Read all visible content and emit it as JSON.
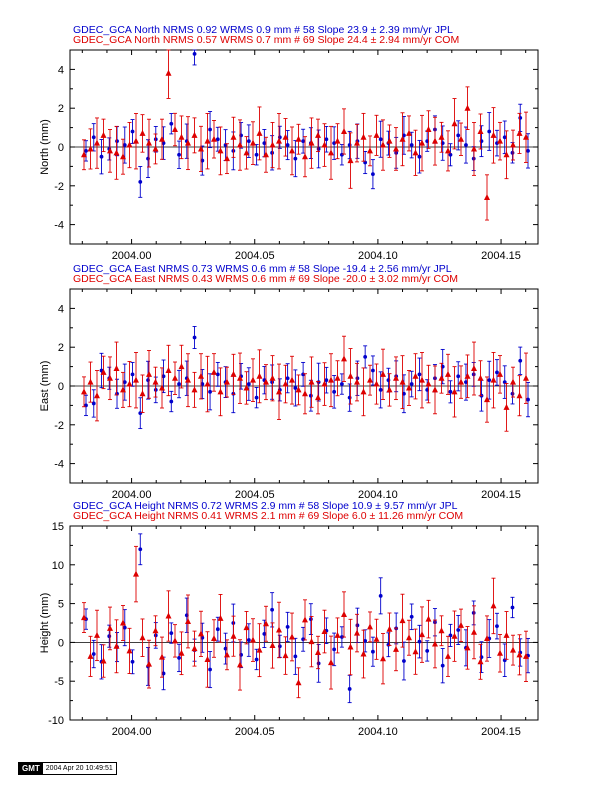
{
  "chart_data": [
    {
      "type": "scatter",
      "ylabel": "North (mm)",
      "ylim": [
        -5,
        5
      ],
      "yticks": [
        -4,
        -2,
        0,
        2,
        4
      ],
      "xlim": [
        2003.975,
        2004.165
      ],
      "xticks": [
        "2004.00",
        "2004.05",
        "2004.10",
        "2004.15"
      ],
      "header": [
        {
          "color": "#0000cc",
          "text": "GDEC_GCA North NRMS 0.92 WRMS  0.9 mm # 58 Slope   23.9 ±  2.39 mm/yr JPL"
        },
        {
          "color": "#dd0000",
          "text": "GDEC_GCA North NRMS 0.57 WRMS  0.7 mm # 69 Slope   24.4 ±  2.94 mm/yr COM"
        }
      ],
      "series": [
        {
          "name": "JPL",
          "color": "#0000cc",
          "marker": "circle",
          "values": [
            -0.2,
            0.5,
            -0.5,
            -0.1,
            0.3,
            0.1,
            0.8,
            -1.8,
            -0.6,
            0.4,
            0.2,
            1.2,
            -0.4,
            0.3,
            4.8,
            -0.7,
            0.9,
            0.4,
            0.1,
            -0.2,
            0.6,
            0.3,
            -0.4,
            0.2,
            -0.3,
            0.5,
            0.1,
            -0.6,
            0.3,
            0.2,
            -0.1,
            0.4,
            0.2,
            -0.4,
            0.1,
            0.3,
            -0.8,
            -1.4,
            0.4,
            0.2,
            -0.3,
            0.6,
            0.1,
            -0.5,
            0.3,
            0.9,
            0.2,
            -0.4,
            0.6,
            0.1,
            -0.6,
            0.3,
            0.8,
            0.2,
            0.5,
            -0.3,
            1.5,
            -0.2
          ]
        },
        {
          "name": "COM",
          "color": "#dd0000",
          "marker": "triangle",
          "values": [
            -0.4,
            -0.1,
            0.2,
            0.6,
            -0.2,
            -0.3,
            -0.5,
            0.1,
            0.3,
            0.7,
            0.2,
            -0.1,
            0.4,
            3.8,
            0.9,
            0.5,
            0.2,
            0.6,
            -0.1,
            0.3,
            0.4,
            -0.2,
            -0.6,
            0.5,
            0.1,
            -0.3,
            0.2,
            0.7,
            -0.4,
            0.1,
            0.3,
            0.5,
            -0.2,
            0.4,
            -0.5,
            0.2,
            0.6,
            0.1,
            -0.3,
            0.3,
            0.8,
            -0.7,
            0.2,
            0.5,
            -0.2,
            0.6,
            0.1,
            0.3,
            -0.1,
            0.4,
            0.7,
            -0.3,
            0.2,
            0.9,
            0.3,
            0.5,
            -0.2,
            1.2,
            0.4,
            2.0,
            -0.1,
            0.8,
            -2.6,
            0.6,
            0.3,
            -0.4,
            0.1,
            0.7,
            0.5
          ]
        }
      ]
    },
    {
      "type": "scatter",
      "ylabel": "East (mm)",
      "ylim": [
        -5,
        5
      ],
      "yticks": [
        -4,
        -2,
        0,
        2,
        4
      ],
      "xlim": [
        2003.975,
        2004.165
      ],
      "xticks": [
        "2004.00",
        "2004.05",
        "2004.10",
        "2004.15"
      ],
      "header": [
        {
          "color": "#0000cc",
          "text": "GDEC_GCA East NRMS 0.73 WRMS  0.6 mm # 58 Slope  -19.4 ±  2.56 mm/yr JPL"
        },
        {
          "color": "#dd0000",
          "text": "GDEC_GCA East NRMS 0.43 WRMS  0.6 mm # 69 Slope  -20.0 ±  3.02 mm/yr COM"
        }
      ],
      "series": [
        {
          "name": "JPL",
          "color": "#0000cc",
          "marker": "circle",
          "values": [
            -1.0,
            -0.9,
            0.8,
            0.4,
            -0.4,
            0.2,
            0.6,
            -1.4,
            0.3,
            -0.2,
            0.5,
            -0.8,
            0.1,
            0.4,
            2.5,
            0.1,
            -0.3,
            0.6,
            0.2,
            -0.4,
            0.5,
            0.1,
            -0.6,
            0.3,
            0.2,
            -0.2,
            0.4,
            -0.1,
            0.6,
            -0.5,
            0.2,
            0.3,
            -0.3,
            0.1,
            -0.6,
            0.4,
            1.5,
            0.8,
            -0.2,
            0.3,
            0.5,
            -0.4,
            0.1,
            0.6,
            -0.2,
            0.4,
            1.0,
            -0.3,
            0.5,
            0.2,
            0.6,
            -0.5,
            0.3,
            0.7,
            0.2,
            -0.4,
            1.3,
            -0.7
          ]
        },
        {
          "name": "COM",
          "color": "#dd0000",
          "marker": "triangle",
          "values": [
            -0.3,
            0.2,
            -0.5,
            0.7,
            0.4,
            0.9,
            -0.2,
            0.1,
            0.3,
            -0.4,
            0.6,
            0.2,
            -0.1,
            0.8,
            0.4,
            1.0,
            0.3,
            -0.2,
            0.5,
            0.1,
            0.7,
            -0.3,
            0.2,
            0.6,
            0.4,
            -0.1,
            0.3,
            0.5,
            0.2,
            0.4,
            -0.3,
            0.1,
            0.3,
            -0.2,
            -0.4,
            0.2,
            -0.6,
            0.1,
            0.3,
            0.4,
            1.4,
            0.5,
            0.2,
            -0.3,
            0.3,
            0.1,
            0.6,
            -0.2,
            0.4,
            0.2,
            -0.1,
            0.5,
            0.3,
            0.1,
            -0.2,
            0.4,
            0.6,
            -0.3,
            0.2,
            0.5,
            0.9,
            0.4,
            -0.7,
            0.3,
            0.6,
            -1.1,
            0.2,
            -0.5,
            0.4
          ]
        }
      ]
    },
    {
      "type": "scatter",
      "ylabel": "Height (mm)",
      "ylim": [
        -10,
        15
      ],
      "yticks": [
        -10,
        -5,
        0,
        5,
        10,
        15
      ],
      "xlim": [
        2003.975,
        2004.165
      ],
      "xticks": [
        "2004.00",
        "2004.05",
        "2004.10",
        "2004.15"
      ],
      "header": [
        {
          "color": "#0000cc",
          "text": "GDEC_GCA Height NRMS 0.72 WRMS  2.9 mm # 58 Slope   10.9 ±  9.57 mm/yr JPL"
        },
        {
          "color": "#dd0000",
          "text": "GDEC_GCA Height NRMS 0.41 WRMS  2.1 mm # 69 Slope    6.0 ± 11.26 mm/yr COM"
        }
      ],
      "series": [
        {
          "name": "JPL",
          "color": "#0000cc",
          "marker": "circle",
          "values": [
            3.0,
            -1.5,
            -2.5,
            0.8,
            -0.6,
            1.9,
            -2.5,
            12.0,
            -3.1,
            0.9,
            -4.0,
            1.2,
            -2.0,
            3.5,
            -1.0,
            0.6,
            -3.5,
            1.7,
            -0.8,
            2.5,
            -1.6,
            0.3,
            -2.2,
            1.1,
            4.2,
            -0.5,
            2.0,
            -1.8,
            0.4,
            3.0,
            -2.7,
            1.5,
            -0.9,
            0.7,
            -6.0,
            2.2,
            0.2,
            -1.2,
            6.0,
            -0.3,
            1.8,
            -2.4,
            3.3,
            0.1,
            -1.1,
            2.6,
            -3.0,
            0.9,
            1.6,
            -0.7,
            3.8,
            -1.9,
            0.5,
            2.1,
            -2.3,
            4.5,
            -1.3,
            -1.7
          ]
        },
        {
          "name": "COM",
          "color": "#dd0000",
          "marker": "triangle",
          "values": [
            3.2,
            -1.8,
            0.9,
            -2.4,
            1.8,
            -0.5,
            2.5,
            -1.1,
            8.8,
            0.6,
            -2.8,
            1.5,
            -1.9,
            3.4,
            0.2,
            -1.4,
            2.7,
            -0.8,
            1.1,
            -2.2,
            0.5,
            3.1,
            -1.6,
            0.8,
            -2.9,
            1.9,
            0.3,
            -1.0,
            2.4,
            -0.4,
            1.6,
            -1.7,
            0.7,
            -5.2,
            2.9,
            0.1,
            -1.3,
            1.4,
            -2.6,
            0.9,
            3.6,
            -0.6,
            1.2,
            -1.5,
            2.0,
            0.4,
            -2.1,
            1.7,
            -0.9,
            2.8,
            0.6,
            -1.2,
            1.0,
            3.0,
            -0.2,
            1.5,
            -1.8,
            0.8,
            2.2,
            -0.7,
            1.3,
            -2.5,
            0.5,
            4.7,
            -1.4,
            0.9,
            -1.0,
            -1.6,
            -1.8
          ]
        }
      ]
    }
  ],
  "footer": {
    "logo": "GMT",
    "timestamp": "2004 Apr 20 10:49:51"
  }
}
